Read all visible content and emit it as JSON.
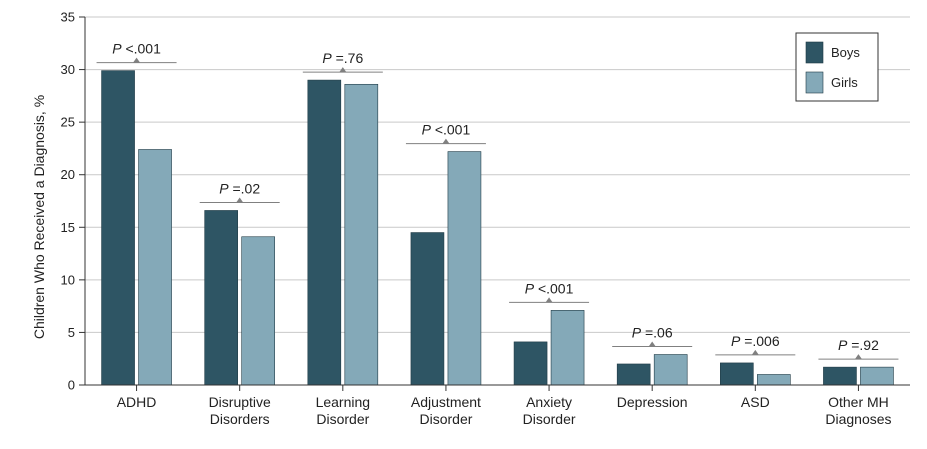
{
  "chart_data": {
    "type": "bar",
    "ylabel": "Children Who Received a Diagnosis, %",
    "ylim": [
      0,
      35
    ],
    "yticks": [
      0,
      5,
      10,
      15,
      20,
      25,
      30,
      35
    ],
    "grid": true,
    "legend_position": "top-right",
    "categories": [
      [
        "ADHD"
      ],
      [
        "Disruptive",
        "Disorders"
      ],
      [
        "Learning",
        "Disorder"
      ],
      [
        "Adjustment",
        "Disorder"
      ],
      [
        "Anxiety",
        "Disorder"
      ],
      [
        "Depression"
      ],
      [
        "ASD"
      ],
      [
        "Other MH",
        "Diagnoses"
      ]
    ],
    "series": [
      {
        "name": "Boys",
        "color": "#2e5564",
        "values": [
          29.9,
          16.6,
          29.0,
          14.5,
          4.1,
          2.0,
          2.1,
          1.7
        ]
      },
      {
        "name": "Girls",
        "color": "#84a9b8",
        "values": [
          22.4,
          14.1,
          28.6,
          22.2,
          7.1,
          2.9,
          1.0,
          1.7
        ]
      }
    ],
    "pvalues": [
      {
        "italic": "P",
        "rest": " <.001"
      },
      {
        "italic": "P",
        "rest": " =.02"
      },
      {
        "italic": "P",
        "rest": " =.76"
      },
      {
        "italic": "P",
        "rest": " <.001"
      },
      {
        "italic": "P",
        "rest": " <.001"
      },
      {
        "italic": "P",
        "rest": " =.06"
      },
      {
        "italic": "P",
        "rest": " =.006"
      },
      {
        "italic": "P",
        "rest": " =.92"
      }
    ],
    "colors": {
      "grid": "#c9c9c9",
      "axis": "#333333",
      "pval_line": "#808080"
    }
  }
}
